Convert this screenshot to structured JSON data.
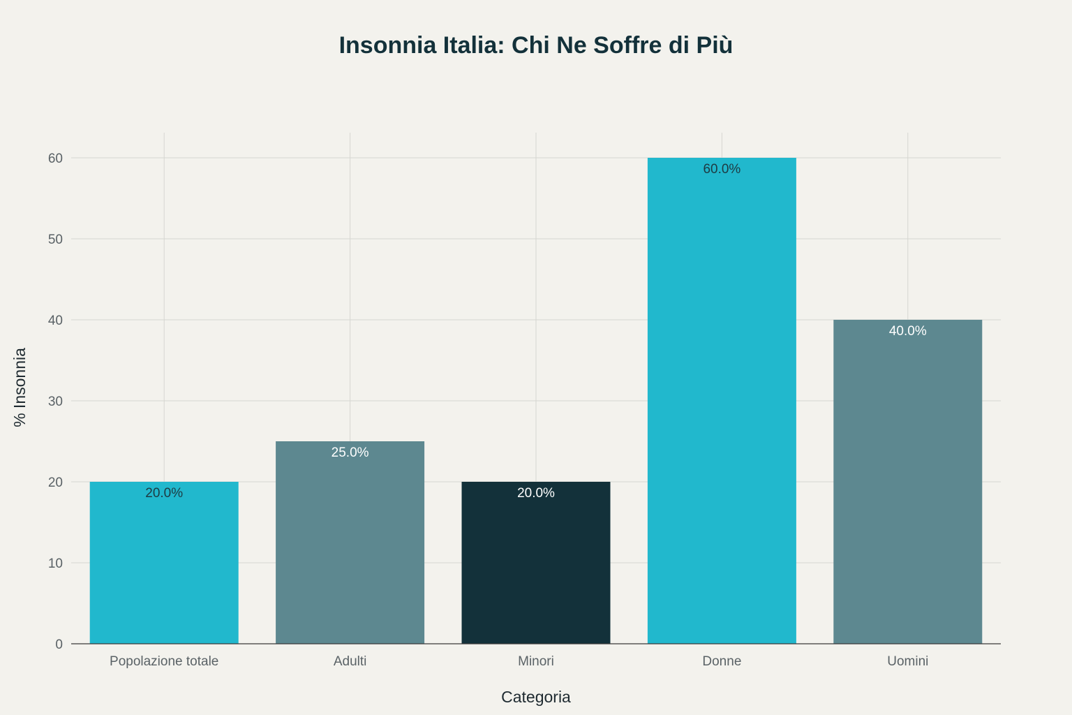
{
  "chart_data": {
    "type": "bar",
    "title": "Insonnia Italia: Chi Ne Soffre di Più",
    "xlabel": "Categoria",
    "ylabel": "% Insonnia",
    "categories": [
      "Popolazione totale",
      "Adulti",
      "Minori",
      "Donne",
      "Uomini"
    ],
    "values": [
      20,
      25,
      20,
      60,
      40
    ],
    "data_labels": [
      "20.0%",
      "25.0%",
      "20.0%",
      "60.0%",
      "40.0%"
    ],
    "bar_colors": [
      "#21b8cd",
      "#5d8890",
      "#13313a",
      "#21b8cd",
      "#5d8890"
    ],
    "label_colors": [
      "#1e3a42",
      "#ffffff",
      "#ffffff",
      "#1e3a42",
      "#ffffff"
    ],
    "ylim": [
      0,
      63
    ],
    "yticks": [
      0,
      10,
      20,
      30,
      40,
      50,
      60
    ],
    "grid": true,
    "legend": "none",
    "background": "#f3f2ed"
  }
}
